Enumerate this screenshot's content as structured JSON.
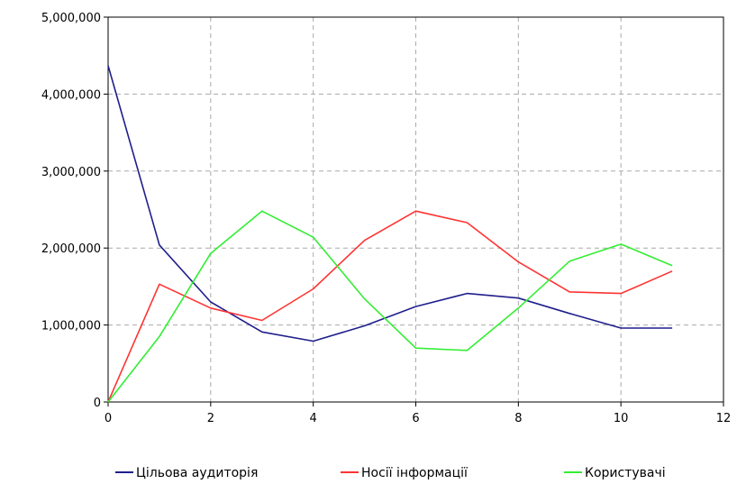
{
  "chart_data": {
    "type": "line",
    "title": "",
    "xlabel": "",
    "ylabel": "",
    "xlim": [
      0,
      12
    ],
    "ylim": [
      0,
      5000000
    ],
    "x_ticks": [
      0,
      2,
      4,
      6,
      8,
      10,
      12
    ],
    "y_ticks": [
      0,
      1000000,
      2000000,
      3000000,
      4000000,
      5000000
    ],
    "x_tick_labels": [
      "0",
      "2",
      "4",
      "6",
      "8",
      "10",
      "12"
    ],
    "y_tick_labels": [
      "0",
      "1,000,000",
      "2,000,000",
      "3,000,000",
      "4,000,000",
      "5,000,000"
    ],
    "grid": true,
    "legend_position": "bottom",
    "x": [
      0,
      1,
      2,
      3,
      4,
      5,
      6,
      7,
      8,
      9,
      10,
      11
    ],
    "series": [
      {
        "name": "Цільова аудиторія",
        "color": "#1f1f8c",
        "values": [
          4370000,
          2040000,
          1300000,
          910000,
          790000,
          990000,
          1240000,
          1410000,
          1350000,
          1150000,
          960000,
          960000
        ]
      },
      {
        "name": "Носії інформації",
        "color": "#ff3333",
        "values": [
          0,
          1530000,
          1220000,
          1060000,
          1470000,
          2100000,
          2480000,
          2330000,
          1820000,
          1430000,
          1410000,
          1700000
        ]
      },
      {
        "name": "Користувачі",
        "color": "#33ee33",
        "values": [
          0,
          850000,
          1930000,
          2480000,
          2140000,
          1340000,
          700000,
          670000,
          1220000,
          1830000,
          2050000,
          1770000
        ]
      }
    ]
  }
}
